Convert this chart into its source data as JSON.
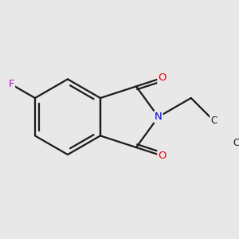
{
  "background_color": "#e8e8e8",
  "bond_color": "#1a1a1a",
  "atom_colors": {
    "F": "#cc00cc",
    "N": "#0000ee",
    "O": "#ee0000",
    "C": "#1a1a1a"
  },
  "line_width": 1.6,
  "figsize": [
    3.0,
    3.0
  ],
  "dpi": 100,
  "xlim": [
    -1.8,
    2.2
  ],
  "ylim": [
    -1.8,
    1.8
  ]
}
